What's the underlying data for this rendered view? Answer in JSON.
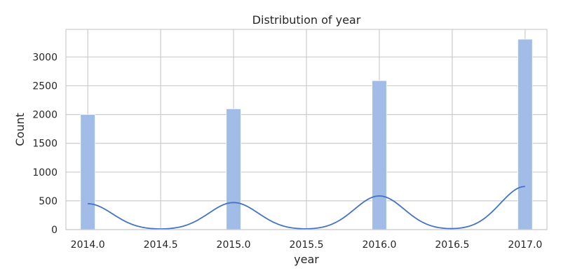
{
  "chart_data": {
    "type": "bar",
    "title": "Distribution of year",
    "xlabel": "year",
    "ylabel": "Count",
    "x_ticks": [
      "2014.0",
      "2014.5",
      "2015.0",
      "2015.5",
      "2016.0",
      "2016.5",
      "2017.0"
    ],
    "x_tick_values": [
      2014.0,
      2014.5,
      2015.0,
      2015.5,
      2016.0,
      2016.5,
      2017.0
    ],
    "y_ticks": [
      "0",
      "500",
      "1000",
      "1500",
      "2000",
      "2500",
      "3000"
    ],
    "y_tick_values": [
      0,
      500,
      1000,
      1500,
      2000,
      2500,
      3000
    ],
    "xlim": [
      2013.85,
      2017.15
    ],
    "ylim": [
      0,
      3480
    ],
    "bin_width": 0.1,
    "bars": [
      {
        "x": 2014.0,
        "value": 2000
      },
      {
        "x": 2015.0,
        "value": 2100
      },
      {
        "x": 2016.0,
        "value": 2590
      },
      {
        "x": 2017.0,
        "value": 3310
      }
    ],
    "kde": [
      {
        "x": 2014.0,
        "y": 450
      },
      {
        "x": 2015.0,
        "y": 470
      },
      {
        "x": 2016.0,
        "y": 585
      },
      {
        "x": 2017.0,
        "y": 750
      }
    ],
    "kde_sigma": 0.17,
    "grid": true,
    "colors": {
      "bar_fill": "#a2bce8",
      "bar_stroke": "#ffffff",
      "kde_line": "#4472c4",
      "grid": "#cccccc"
    }
  }
}
